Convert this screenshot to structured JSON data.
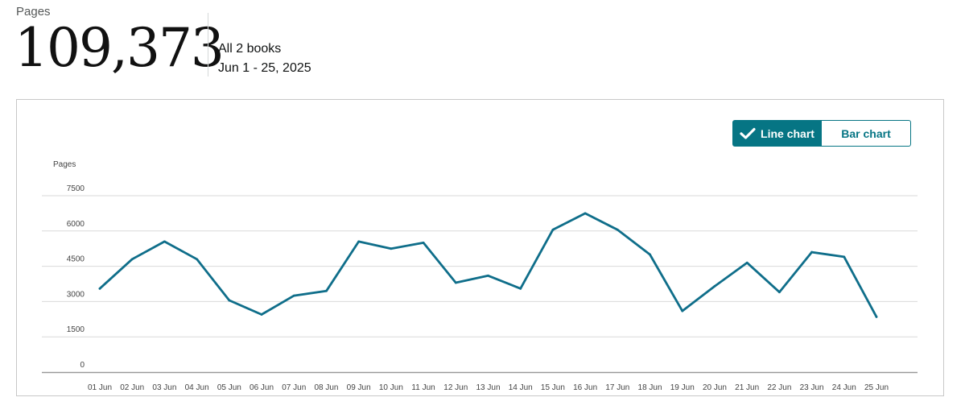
{
  "summary": {
    "label": "Pages",
    "value": "109,373",
    "scope": "All 2 books",
    "range": "Jun 1 - 25, 2025"
  },
  "toggle": {
    "line_label": "Line chart",
    "bar_label": "Bar chart",
    "selected": "Line chart"
  },
  "colors": {
    "accent": "#067584",
    "line": "#0f6e8a",
    "grid": "#d9d9d9",
    "axis": "#9a9a9a"
  },
  "chart_data": {
    "type": "line",
    "title": "",
    "ylabel": "Pages",
    "xlabel": "",
    "ylim": [
      0,
      7500
    ],
    "yticks": [
      0,
      1500,
      3000,
      4500,
      6000,
      7500
    ],
    "grid": true,
    "categories": [
      "01 Jun",
      "02 Jun",
      "03 Jun",
      "04 Jun",
      "05 Jun",
      "06 Jun",
      "07 Jun",
      "08 Jun",
      "09 Jun",
      "10 Jun",
      "11 Jun",
      "12 Jun",
      "13 Jun",
      "14 Jun",
      "15 Jun",
      "16 Jun",
      "17 Jun",
      "18 Jun",
      "19 Jun",
      "20 Jun",
      "21 Jun",
      "22 Jun",
      "23 Jun",
      "24 Jun",
      "25 Jun"
    ],
    "series": [
      {
        "values": [
          3550,
          4800,
          5550,
          4800,
          3050,
          2450,
          3250,
          3450,
          5550,
          5250,
          5500,
          3800,
          4100,
          3550,
          6050,
          6750,
          6050,
          5000,
          2600,
          3650,
          4650,
          3400,
          5100,
          4900,
          2350
        ]
      }
    ]
  }
}
